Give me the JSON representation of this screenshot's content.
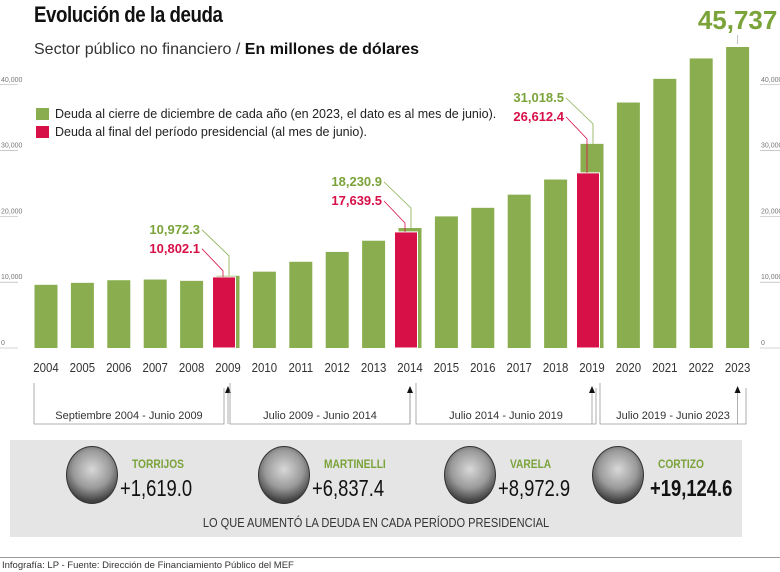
{
  "title": "Evolución de la deuda",
  "subtitle_light": "Sector público no financiero / ",
  "subtitle_bold": "En millones de dólares",
  "legend": [
    {
      "label": "Deuda al cierre de diciembre de cada año (en 2023, el dato es al mes de junio).",
      "color": "#8aae4f"
    },
    {
      "label": "Deuda al final del período presidencial (al mes de junio).",
      "color": "#d81048"
    }
  ],
  "chart_data": {
    "type": "bar",
    "categories": [
      "2004",
      "2005",
      "2006",
      "2007",
      "2008",
      "2009",
      "2010",
      "2011",
      "2012",
      "2013",
      "2014",
      "2015",
      "2016",
      "2017",
      "2018",
      "2019",
      "2020",
      "2021",
      "2022",
      "2023"
    ],
    "series": [
      {
        "name": "Deuda al cierre de diciembre de cada año (en 2023, el dato es al mes de junio).",
        "color": "#8aae4f",
        "values": [
          9600,
          9900,
          10300,
          10400,
          10200,
          10972.3,
          11600,
          13100,
          14600,
          16300,
          18230.9,
          20000,
          21300,
          23300,
          25600,
          31018.5,
          37300,
          40900,
          44000,
          45737
        ]
      },
      {
        "name": "Deuda al final del período presidencial (al mes de junio).",
        "color": "#d81048",
        "points": [
          {
            "x": "2009",
            "y": 10802.1
          },
          {
            "x": "2014",
            "y": 17639.5
          },
          {
            "x": "2019",
            "y": 26612.4
          }
        ]
      }
    ],
    "annotations": [
      {
        "x": "2009",
        "green": "10,972.3",
        "red": "10,802.1"
      },
      {
        "x": "2014",
        "green": "18,230.9",
        "red": "17,639.5"
      },
      {
        "x": "2019",
        "green": "31,018.5",
        "red": "26,612.4"
      },
      {
        "x": "2023",
        "green": "45,737"
      }
    ],
    "yticks": [
      "0",
      "10,000",
      "20,000",
      "30,000",
      "40,000"
    ],
    "ylim": [
      0,
      45737
    ],
    "periods": [
      "Septiembre 2004 - Junio 2009",
      "Julio 2009 - Junio 2014",
      "Julio 2014 - Junio 2019",
      "Julio 2019 - Junio 2023"
    ]
  },
  "presidents": [
    {
      "name": "TORRIJOS",
      "value": "+1,619.0"
    },
    {
      "name": "MARTINELLI",
      "value": "+6,837.4"
    },
    {
      "name": "VARELA",
      "value": "+8,972.9"
    },
    {
      "name": "CORTIZO",
      "value": "+19,124.6"
    }
  ],
  "caption": "LO QUE AUMENTÓ LA DEUDA EN CADA PERÍODO PRESIDENCIAL",
  "footer": "Infografía: LP - Fuente: Dirección de Financiamiento Público del MEF"
}
